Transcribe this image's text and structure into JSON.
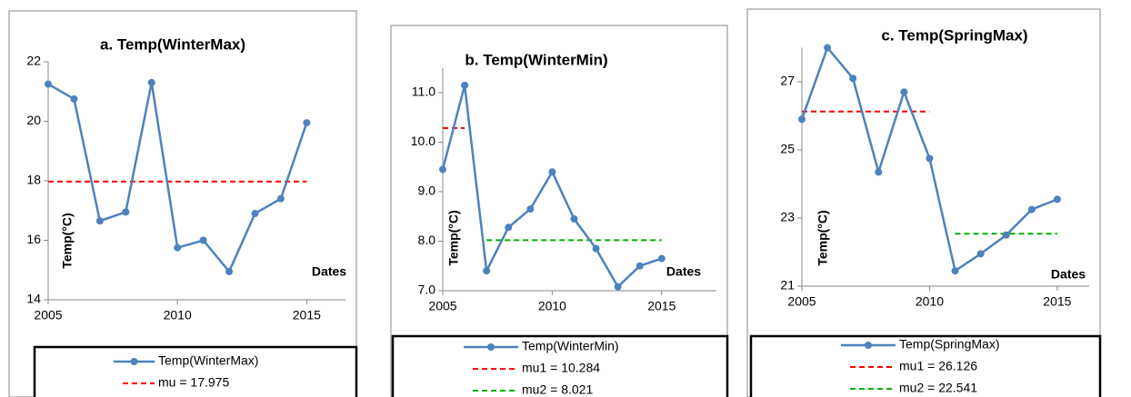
{
  "chart_data": [
    {
      "type": "line",
      "title": "a. Temp(WinterMax)",
      "y_label": "Temp(°C)",
      "x_label": "Dates",
      "x": [
        2005,
        2006,
        2007,
        2008,
        2009,
        2010,
        2011,
        2012,
        2013,
        2014,
        2015
      ],
      "xlim": [
        2005,
        2016.5
      ],
      "xticks": [
        2005,
        2010,
        2015
      ],
      "ylim": [
        14,
        22
      ],
      "yticks": [
        14,
        16,
        18,
        20,
        22
      ],
      "series": [
        {
          "name": "Temp(WinterMax)",
          "color": "#4f81bd",
          "values": [
            21.25,
            20.75,
            16.65,
            16.95,
            21.3,
            15.75,
            16.0,
            14.95,
            16.9,
            17.4,
            19.95
          ]
        }
      ],
      "means": [
        {
          "name": "mu = 17.975",
          "color": "#ff0000",
          "value": 17.975,
          "x": [
            2005,
            2015
          ]
        }
      ]
    },
    {
      "type": "line",
      "title": "b. Temp(WinterMin)",
      "y_label": "Temp(°C)",
      "x_label": "Dates",
      "x": [
        2005,
        2006,
        2007,
        2008,
        2009,
        2010,
        2011,
        2012,
        2013,
        2014,
        2015
      ],
      "xlim": [
        2005,
        2017.5
      ],
      "xticks": [
        2005,
        2010,
        2015
      ],
      "ylim": [
        7,
        11.5
      ],
      "yticks": [
        {
          "value": 7,
          "label": "7.0"
        },
        {
          "value": 8,
          "label": "8.0"
        },
        {
          "value": 9,
          "label": "9.0"
        },
        {
          "value": 10,
          "label": "10.0"
        },
        {
          "value": 11,
          "label": "11.0"
        }
      ],
      "series": [
        {
          "name": "Temp(WinterMin)",
          "color": "#4f81bd",
          "values": [
            9.45,
            11.15,
            7.4,
            8.28,
            8.65,
            9.4,
            8.45,
            7.85,
            7.08,
            7.5,
            7.65
          ]
        }
      ],
      "means": [
        {
          "name": "mu1 = 10.284",
          "color": "#ff0000",
          "value": 10.284,
          "x": [
            2005,
            2006
          ]
        },
        {
          "name": "mu2 = 8.021",
          "color": "#00b000",
          "value": 8.021,
          "x": [
            2007,
            2015
          ]
        }
      ]
    },
    {
      "type": "line",
      "title": "c. Temp(SpringMax)",
      "y_label": "Temp(°C)",
      "x_label": "Dates",
      "x": [
        2005,
        2006,
        2007,
        2008,
        2009,
        2010,
        2011,
        2012,
        2013,
        2014,
        2015
      ],
      "xlim": [
        2005,
        2016.25
      ],
      "xticks": [
        2005,
        2010,
        2015
      ],
      "ylim": [
        21,
        28
      ],
      "yticks": [
        21,
        23,
        25,
        27
      ],
      "series": [
        {
          "name": "Temp(SpringMax)",
          "color": "#4f81bd",
          "values": [
            25.9,
            28.0,
            27.1,
            24.35,
            26.7,
            24.75,
            21.45,
            21.95,
            22.5,
            23.25,
            23.55
          ]
        }
      ],
      "means": [
        {
          "name": "mu1 = 26.126",
          "color": "#ff0000",
          "value": 26.126,
          "x": [
            2005,
            2010
          ]
        },
        {
          "name": "mu2 = 22.541",
          "color": "#00b000",
          "value": 22.541,
          "x": [
            2011,
            2015
          ]
        }
      ]
    }
  ]
}
